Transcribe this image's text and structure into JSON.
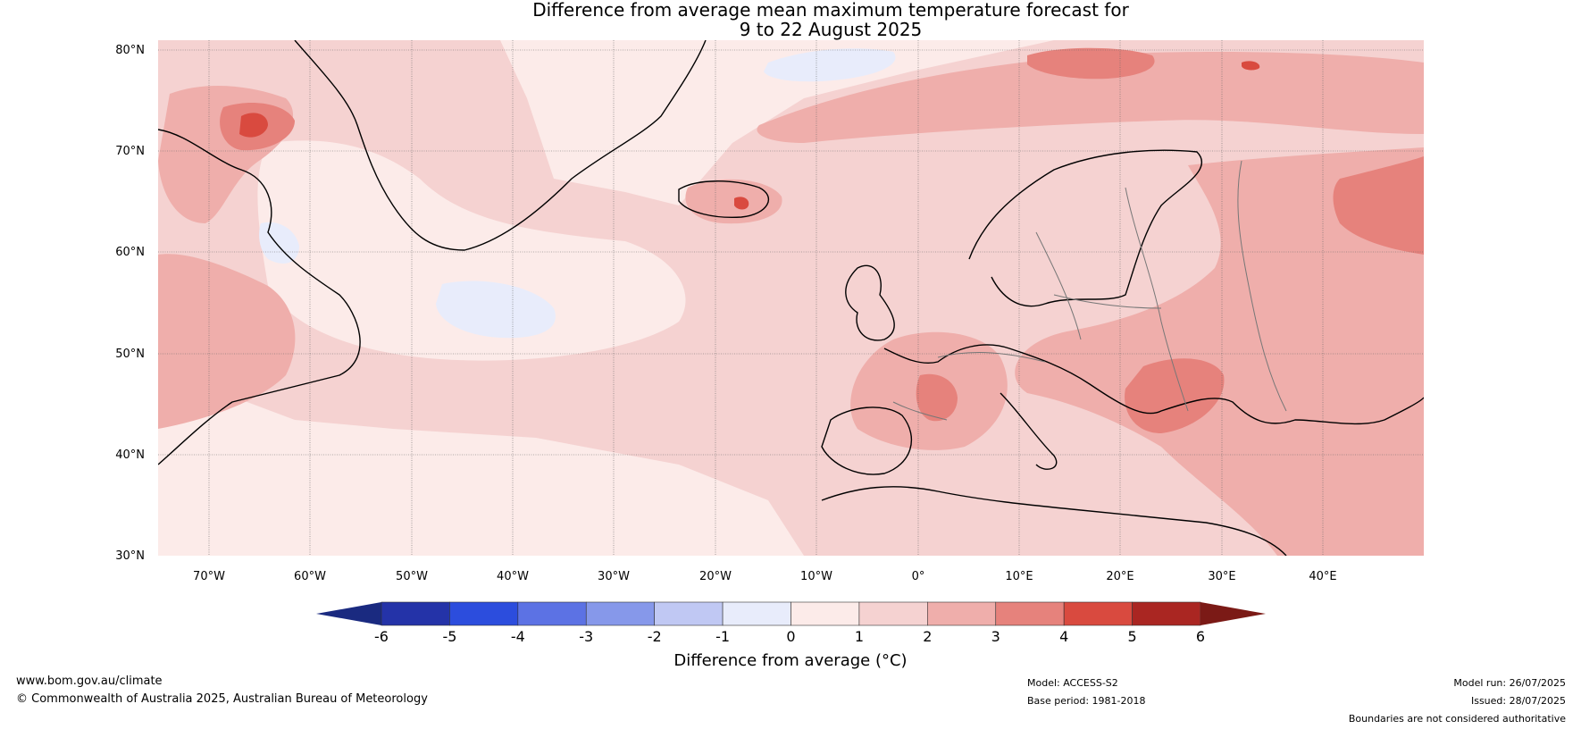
{
  "title": {
    "line1": "Difference from average mean maximum temperature forecast for",
    "line2": "9 to 22 August 2025"
  },
  "map": {
    "lat_labels": [
      "80°N",
      "70°N",
      "60°N",
      "50°N",
      "40°N",
      "30°N"
    ],
    "lon_labels": [
      "70°W",
      "60°W",
      "50°W",
      "40°W",
      "30°W",
      "20°W",
      "10°W",
      "0°",
      "10°E",
      "20°E",
      "30°E",
      "40°E"
    ],
    "lat_range": [
      30,
      81
    ],
    "lon_range": [
      -75,
      50
    ]
  },
  "colorbar": {
    "ticks": [
      "-6",
      "-5",
      "-4",
      "-3",
      "-2",
      "-1",
      "0",
      "1",
      "2",
      "3",
      "4",
      "5",
      "6"
    ],
    "colors": [
      "#2433a8",
      "#2c4ddd",
      "#5c72e4",
      "#8698ea",
      "#c0c8f3",
      "#e8ecfb",
      "#fcebe9",
      "#f5d2d1",
      "#efaeab",
      "#e6827c",
      "#d94a3f",
      "#aa2622"
    ],
    "extend_low_color": "#1a2a80",
    "extend_high_color": "#7b1a16",
    "label": "Difference from average (°C)"
  },
  "footer": {
    "website": "www.bom.gov.au/climate",
    "copyright": "© Commonwealth of Australia 2025, Australian Bureau of Meteorology",
    "model": "Model: ACCESS-S2",
    "base_period": "Base period: 1981-2018",
    "model_run": "Model run: 26/07/2025",
    "issued": "Issued: 28/07/2025",
    "disclaimer": "Boundaries are not considered authoritative"
  }
}
